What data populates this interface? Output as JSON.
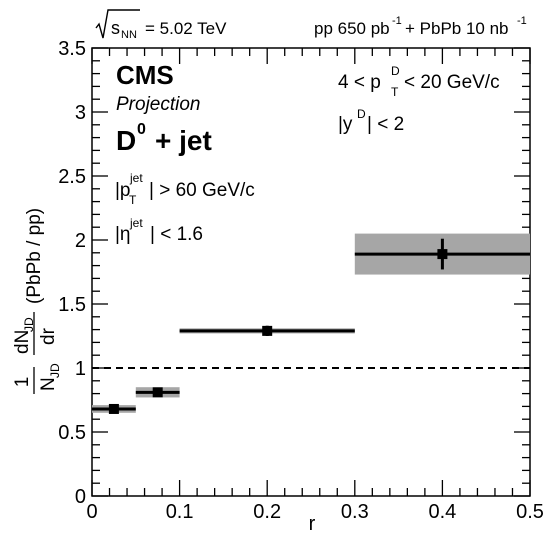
{
  "chart_data": {
    "type": "scatter",
    "header_left": {
      "sqrt": "s",
      "sub": "NN",
      "rest": "= 5.02 TeV"
    },
    "header_right": {
      "a": "pp 650 pb",
      "a_sup": "-1",
      "b": "+ PbPb 10 nb",
      "b_sup": "-1"
    },
    "experiment": "CMS",
    "status": "Projection",
    "process": {
      "base": "D",
      "sup": "0",
      "rest": "+ jet"
    },
    "cuts_left": [
      {
        "pre": "|p",
        "sub": "T",
        "sup": "jet",
        "post": "| > 60 GeV/c"
      },
      {
        "pre": "|η",
        "sup": "jet",
        "post": "| < 1.6"
      }
    ],
    "cuts_right": [
      {
        "pre": "4 < p",
        "sub": "T",
        "sup": "D",
        "post": "< 20 GeV/c"
      },
      {
        "pre": "|y",
        "sup": "D",
        "post": "| < 2"
      }
    ],
    "xlabel": "r",
    "ylabel": {
      "frac1_num": "1",
      "frac1_den": "N",
      "frac1_den_sub": "JD",
      "frac2_num": "dN",
      "frac2_num_sub": "JD",
      "frac2_den": "dr",
      "suffix": "(PbPb / pp)"
    },
    "xlim": [
      0,
      0.5
    ],
    "ylim": [
      0,
      3.5
    ],
    "x_ticks": [
      "0",
      "0.1",
      "0.2",
      "0.3",
      "0.4",
      "0.5"
    ],
    "y_ticks": [
      "0",
      "0.5",
      "1",
      "1.5",
      "2",
      "2.5",
      "3",
      "3.5"
    ],
    "reference_line": 1.0,
    "points": [
      {
        "x": 0.025,
        "y": 0.68,
        "xlo": 0.0,
        "xhi": 0.05,
        "stat": 0.02,
        "syst": 0.03
      },
      {
        "x": 0.075,
        "y": 0.81,
        "xlo": 0.05,
        "xhi": 0.1,
        "stat": 0.02,
        "syst": 0.04
      },
      {
        "x": 0.2,
        "y": 1.29,
        "xlo": 0.1,
        "xhi": 0.3,
        "stat": 0.04,
        "syst": 0.02
      },
      {
        "x": 0.4,
        "y": 1.89,
        "xlo": 0.3,
        "xhi": 0.5,
        "stat": 0.12,
        "syst": 0.16
      }
    ],
    "colors": {
      "marker": "#000000",
      "syst_band": "#a6a6a6",
      "frame": "#000000"
    }
  }
}
